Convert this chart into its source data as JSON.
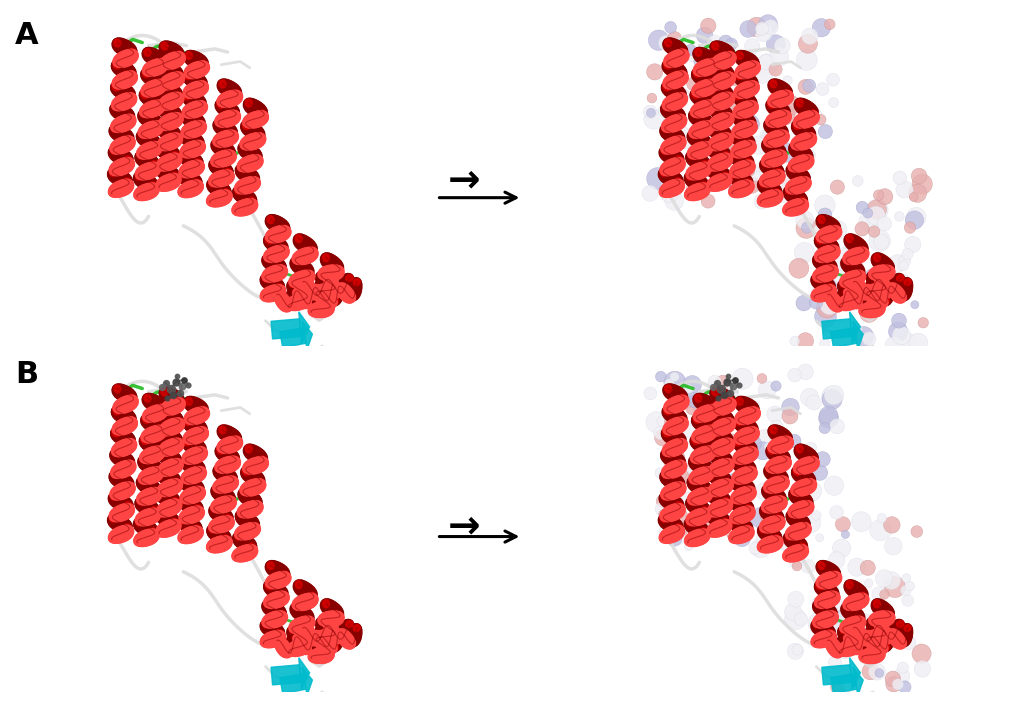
{
  "background_color": "#ffffff",
  "label_A": "A",
  "label_B": "B",
  "arrow_color": "#000000",
  "label_fontsize": 22,
  "label_fontweight": "bold",
  "fig_width": 10.2,
  "fig_height": 7.06,
  "helix_red": "#cc0000",
  "helix_highlight": "#ff4444",
  "helix_shadow": "#880000",
  "loop_green": "#22bb22",
  "coil_gray": "#aaaaaa",
  "coil_white": "#dddddd",
  "cyan_sheet": "#00bbcc",
  "surface_neutral": "#e8e8ee",
  "surface_neg": "#ddaaaa",
  "surface_pos": "#aaaacc",
  "ligand_color": "#444444"
}
